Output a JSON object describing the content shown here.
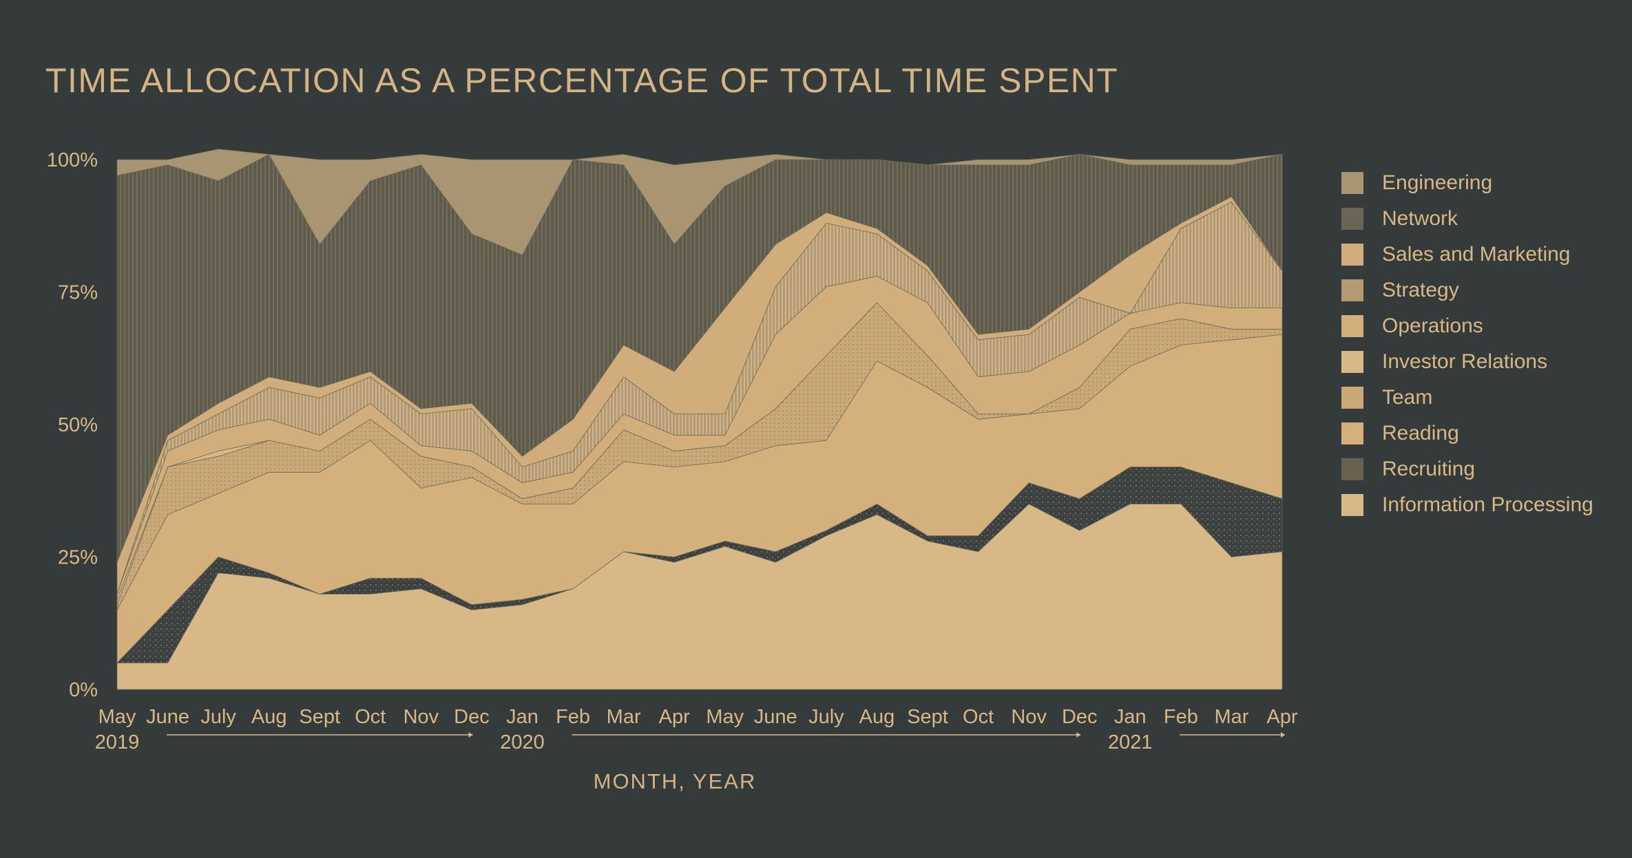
{
  "chart_data": {
    "type": "area",
    "stacked": true,
    "title": "TIME ALLOCATION AS A PERCENTAGE OF TOTAL TIME SPENT",
    "xlabel": "MONTH, YEAR",
    "ylabel": "",
    "ylim": [
      0,
      100
    ],
    "yticks": [
      "0%",
      "25%",
      "50%",
      "75%",
      "100%"
    ],
    "categories": [
      "May 2019",
      "June 2019",
      "July 2019",
      "Aug 2019",
      "Sept 2019",
      "Oct 2019",
      "Nov 2019",
      "Dec 2019",
      "Jan 2020",
      "Feb 2020",
      "Mar 2020",
      "Apr 2020",
      "May 2020",
      "June 2020",
      "July 2020",
      "Aug 2020",
      "Sept 2020",
      "Oct 2020",
      "Nov 2020",
      "Dec 2020",
      "Jan 2021",
      "Feb 2021",
      "Mar 2021",
      "Apr 2021"
    ],
    "x_tick_labels": [
      "May",
      "June",
      "July",
      "Aug",
      "Sept",
      "Oct",
      "Nov",
      "Dec",
      "Jan",
      "Feb",
      "Mar",
      "Apr",
      "May",
      "June",
      "July",
      "Aug",
      "Sept",
      "Oct",
      "Nov",
      "Dec",
      "Jan",
      "Feb",
      "Mar",
      "Apr"
    ],
    "year_labels": [
      {
        "label": "2019",
        "index": 0
      },
      {
        "label": "2020",
        "index": 8
      },
      {
        "label": "2021",
        "index": 20
      }
    ],
    "legend_position": "right",
    "series": [
      {
        "name": "Information Processing",
        "color": "#d8b886",
        "values": [
          5,
          5,
          22,
          21,
          18,
          18,
          19,
          15,
          16,
          19,
          26,
          24,
          27,
          24,
          29,
          33,
          28,
          26,
          35,
          30,
          35,
          35,
          25,
          26
        ]
      },
      {
        "name": "Recruiting",
        "color": "#3a4140",
        "values": [
          0,
          10,
          3,
          1,
          0,
          3,
          2,
          1,
          1,
          0,
          0,
          1,
          1,
          2,
          1,
          2,
          1,
          3,
          4,
          6,
          7,
          7,
          14,
          10
        ]
      },
      {
        "name": "Reading",
        "color": "#d3b07c",
        "values": [
          10,
          18,
          12,
          19,
          23,
          26,
          17,
          24,
          18,
          16,
          17,
          17,
          15,
          20,
          17,
          27,
          28,
          22,
          13,
          17,
          19,
          23,
          27,
          31
        ]
      },
      {
        "name": "Team",
        "color": "#caa877",
        "values": [
          1,
          9,
          7,
          6,
          4,
          4,
          6,
          2,
          1,
          3,
          6,
          3,
          3,
          7,
          16,
          11,
          6,
          1,
          0,
          4,
          7,
          5,
          2,
          1
        ]
      },
      {
        "name": "Investor Relations",
        "color": "#d8b886",
        "values": [
          1,
          0,
          1,
          0,
          0,
          0,
          0,
          0,
          0,
          0,
          0,
          0,
          0,
          0,
          0,
          0,
          0,
          0,
          0,
          0,
          0,
          0,
          0,
          0
        ]
      },
      {
        "name": "Operations",
        "color": "#d1ae7b",
        "values": [
          1,
          3,
          4,
          4,
          3,
          3,
          2,
          3,
          3,
          3,
          3,
          3,
          2,
          14,
          13,
          5,
          10,
          7,
          8,
          8,
          3,
          3,
          4,
          4
        ]
      },
      {
        "name": "Strategy",
        "color": "#a89473",
        "values": [
          0,
          2,
          3,
          6,
          7,
          5,
          6,
          8,
          3,
          4,
          7,
          4,
          4,
          9,
          12,
          8,
          6,
          7,
          7,
          9,
          0,
          14,
          20,
          7
        ]
      },
      {
        "name": "Sales and Marketing",
        "color": "#d0ad7a",
        "values": [
          6,
          1,
          2,
          2,
          2,
          1,
          1,
          1,
          2,
          6,
          6,
          8,
          20,
          8,
          2,
          1,
          1,
          1,
          1,
          1,
          11,
          1,
          1,
          0
        ]
      },
      {
        "name": "Network",
        "color": "#6a6555",
        "values": [
          73,
          51,
          42,
          42,
          27,
          36,
          46,
          32,
          38,
          49,
          34,
          24,
          23,
          16,
          10,
          13,
          19,
          32,
          31,
          26,
          17,
          11,
          6,
          22
        ]
      },
      {
        "name": "Engineering",
        "color": "#aa9572",
        "values": [
          3,
          1,
          6,
          0,
          16,
          4,
          2,
          14,
          18,
          0,
          2,
          15,
          5,
          1,
          0,
          0,
          0,
          1,
          1,
          0,
          1,
          1,
          1,
          0
        ]
      }
    ]
  }
}
